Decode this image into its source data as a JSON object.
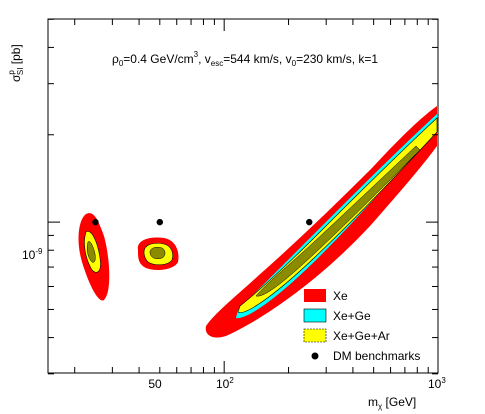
{
  "chart_data": {
    "type": "contour",
    "header": {
      "rho": "ρ",
      "rho_sub": "0",
      "rho_val": "=0.4 GeV/cm",
      "rho_sup": "3",
      "v": ", v",
      "v_sub": "esc",
      "v_val": "=544 km/s, v",
      "v0_sub": "0",
      "rest": "=230 km/s, k=1"
    },
    "xlabel": {
      "main": "m",
      "sub": "χ",
      "rest": " [GeV]"
    },
    "ylabel": {
      "main": "σ",
      "sup": "p",
      "sub": "SI",
      "rest": " [pb]"
    },
    "x_scale": "log",
    "y_scale": "log",
    "x_tick_labels": [
      {
        "value": 50,
        "text": "50"
      },
      {
        "value": 100,
        "base": "10",
        "exp": "2"
      },
      {
        "value": 1000,
        "base": "10",
        "exp": "3"
      }
    ],
    "y_tick_labels": [
      {
        "value": 1e-09,
        "base": "10",
        "exp": "-9"
      }
    ],
    "legend": {
      "position": "bottom-right",
      "entries": [
        {
          "label": "Xe",
          "color": "#ff0000"
        },
        {
          "label": "Xe+Ge",
          "color": "#00ffff"
        },
        {
          "label": "Xe+Ge+Ar",
          "color": "#ffff00"
        },
        {
          "label": "DM benchmarks",
          "marker": "dot"
        }
      ]
    },
    "benchmarks": [
      {
        "mass_GeV": 25,
        "sigma_pb": 1e-09
      },
      {
        "mass_GeV": 50,
        "sigma_pb": 1e-09
      },
      {
        "mass_GeV": 250,
        "sigma_pb": 1e-09
      }
    ],
    "colors": {
      "xe": "#ff0000",
      "xe_ge": "#00ffff",
      "xe_ge_ar": "#ffff00",
      "inner": "#8b8b00",
      "contour_line": "#000000"
    }
  }
}
